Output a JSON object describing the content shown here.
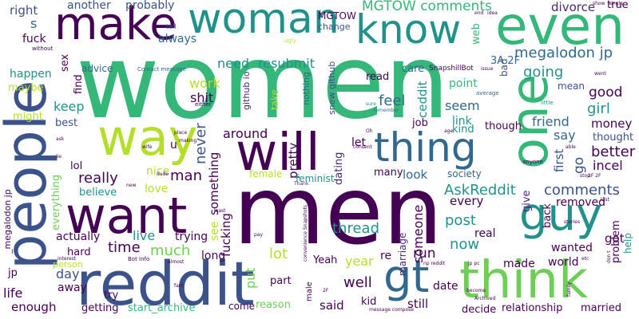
{
  "palette": {
    "yellow": "#b5de2b",
    "green": "#35b779",
    "teal": "#21918c",
    "blue": "#31688e",
    "indigo": "#3b528b",
    "purple": "#440154",
    "violet": "#482878",
    "lime": "#6ece58",
    "sea": "#1f9e89"
  },
  "words": [
    "women",
    "men",
    "reddit",
    "people",
    "make",
    "woman",
    "know",
    "even",
    "one",
    "way",
    "will",
    "want",
    "guy",
    "think",
    "thing",
    "gt",
    "MGTOW comments",
    "probably",
    "another",
    "divorce",
    "true",
    "right",
    "s",
    "fuck",
    "sex",
    "happen",
    "maybe",
    "might",
    "always",
    "advice",
    "need",
    "resubmit",
    "megalodon jp",
    "3A 2F",
    "web",
    "care",
    "SnapshillBot",
    "read",
    "bad",
    "going",
    "good",
    "girl",
    "friend",
    "money",
    "thought",
    "mean",
    "say",
    "point",
    "feel",
    "ceddit",
    "seem",
    "link",
    "kind",
    "though",
    "keep",
    "best",
    "shit",
    "work",
    "find",
    "github io",
    "snew github",
    "nothing",
    "take",
    "lol",
    "really",
    "nice",
    "never",
    "something",
    "around",
    "pretty",
    "dating",
    "let",
    "job",
    "better",
    "first",
    "incel",
    "go",
    "AskReddit",
    "comments",
    "removed",
    "every",
    "post",
    "thread",
    "look",
    "many",
    "society",
    "feminist",
    "female",
    "love",
    "believe",
    "everything",
    "man",
    "u",
    "live",
    "trying",
    "see",
    "fucking",
    "back",
    "give",
    "got",
    "wanted",
    "real",
    "someone",
    "now",
    "run",
    "time",
    "much",
    "actually",
    "hard",
    "lot",
    "year",
    "re",
    "marriage",
    "Yeah",
    "long",
    "day",
    "put",
    "part",
    "well",
    "made",
    "world",
    "problem",
    "help",
    "life",
    "away",
    "try",
    "enough",
    "getting",
    "start_archive",
    "come",
    "reason",
    "said",
    "kid",
    "still",
    "date",
    "decide",
    "relationship",
    "married",
    "jp",
    "_megalodon jp",
    "person",
    "MGTOW",
    "change",
    "tell",
    "without",
    "Contact message",
    "ugly",
    "either",
    "remember",
    "sure",
    "average",
    "little",
    "end",
    "idea",
    "show",
    "single",
    "went",
    "Thank",
    "convenience Snapshots",
    "pay",
    "Bot Info",
    "interest",
    "male",
    "message compose",
    "np reddit",
    "jp pc",
    "etc",
    "family",
    "don t",
    "2F",
    "ask",
    "wife",
    "stop",
    "stories",
    "last",
    "anyone",
    "place",
    "able",
    "dude",
    "consent",
    "least",
    "almost",
    "fact",
    "Oh",
    "making",
    "age",
    "Archived",
    "new",
    "lie",
    "issue",
    "2F 2F",
    "become"
  ]
}
